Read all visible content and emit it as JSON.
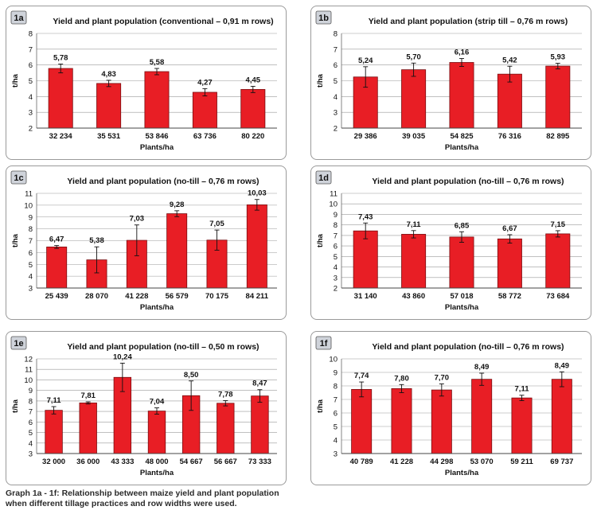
{
  "colors": {
    "bar": "#e81e25",
    "bar_edge": "#7a0d10",
    "grid": "#9a9a9a",
    "label_box": "#cfd3da"
  },
  "chart_data": [
    {
      "id": "1a",
      "type": "bar",
      "title": "Yield and plant population (conventional – 0,91 m rows)",
      "xlabel": "Plants/ha",
      "ylabel": "t/ha",
      "categories": [
        "32 234",
        "35 531",
        "53 846",
        "63 736",
        "80 220"
      ],
      "values": [
        5.78,
        4.83,
        5.58,
        4.27,
        4.45
      ],
      "value_labels": [
        "5,78",
        "4,83",
        "5,58",
        "4,27",
        "4,45"
      ],
      "errors": [
        0.28,
        0.2,
        0.2,
        0.23,
        0.2
      ],
      "ylim": [
        2,
        8
      ],
      "yticks": [
        "2",
        "3",
        "4",
        "5",
        "6",
        "7",
        "8"
      ],
      "grid": true,
      "legend": "none"
    },
    {
      "id": "1b",
      "type": "bar",
      "title": "Yield and plant population (strip till – 0,76 m rows)",
      "xlabel": "Plants/ha",
      "ylabel": "t/ha",
      "categories": [
        "29 386",
        "39 035",
        "54 825",
        "76 316",
        "82 895"
      ],
      "values": [
        5.24,
        5.7,
        6.16,
        5.42,
        5.93
      ],
      "value_labels": [
        "5,24",
        "5,70",
        "6,16",
        "5,42",
        "5,93"
      ],
      "errors": [
        0.65,
        0.42,
        0.25,
        0.5,
        0.18
      ],
      "ylim": [
        2,
        8
      ],
      "yticks": [
        "2",
        "3",
        "4",
        "5",
        "6",
        "7",
        "8"
      ],
      "grid": true,
      "legend": "none"
    },
    {
      "id": "1c",
      "type": "bar",
      "title": "Yield and plant population (no-till – 0,76 m rows)",
      "xlabel": "Plants/ha",
      "ylabel": "t/ha",
      "categories": [
        "25 439",
        "28 070",
        "41 228",
        "56 579",
        "70 175",
        "84 211"
      ],
      "values": [
        6.47,
        5.38,
        7.03,
        9.28,
        7.05,
        10.03
      ],
      "value_labels": [
        "6,47",
        "5,38",
        "7,03",
        "9,28",
        "7,05",
        "10,03"
      ],
      "errors": [
        0.12,
        1.1,
        1.3,
        0.25,
        0.85,
        0.45
      ],
      "ylim": [
        3,
        11
      ],
      "yticks": [
        "3",
        "4",
        "5",
        "6",
        "7",
        "8",
        "9",
        "10",
        "11"
      ],
      "grid": true,
      "legend": "none"
    },
    {
      "id": "1d",
      "type": "bar",
      "title": "Yield and plant population (no-till – 0,76 m rows)",
      "xlabel": "Plants/ha",
      "ylabel": "t/ha",
      "categories": [
        "31 140",
        "43 860",
        "57 018",
        "58 772",
        "73 684"
      ],
      "values": [
        7.43,
        7.11,
        6.85,
        6.67,
        7.15
      ],
      "value_labels": [
        "7,43",
        "7,11",
        "6,85",
        "6,67",
        "7,15"
      ],
      "errors": [
        0.75,
        0.35,
        0.5,
        0.4,
        0.3
      ],
      "ylim": [
        2,
        11
      ],
      "yticks": [
        "2",
        "3",
        "4",
        "5",
        "6",
        "7",
        "8",
        "9",
        "10",
        "11"
      ],
      "grid": true,
      "legend": "none"
    },
    {
      "id": "1e",
      "type": "bar",
      "title": "Yield and plant population (no-till – 0,50 m rows)",
      "xlabel": "Plants/ha",
      "ylabel": "t/ha",
      "categories": [
        "32 000",
        "36 000",
        "43 333",
        "48 000",
        "54 667",
        "56 667",
        "73 333"
      ],
      "values": [
        7.11,
        7.81,
        10.24,
        7.04,
        8.5,
        7.78,
        8.47
      ],
      "value_labels": [
        "7,11",
        "7,81",
        "10,24",
        "7,04",
        "8,50",
        "7,78",
        "8,47"
      ],
      "errors": [
        0.35,
        0.1,
        1.35,
        0.3,
        1.4,
        0.25,
        0.6
      ],
      "ylim": [
        3,
        12
      ],
      "yticks": [
        "3",
        "4",
        "5",
        "6",
        "7",
        "8",
        "9",
        "10",
        "11",
        "12"
      ],
      "grid": true,
      "legend": "none"
    },
    {
      "id": "1f",
      "type": "bar",
      "title": "Yield and plant population (no-till – 0,76 m rows)",
      "xlabel": "Plants/ha",
      "ylabel": "t/ha",
      "categories": [
        "40 789",
        "41 228",
        "44 298",
        "53 070",
        "59 211",
        "69 737"
      ],
      "values": [
        7.74,
        7.8,
        7.7,
        8.49,
        7.11,
        8.49
      ],
      "value_labels": [
        "7,74",
        "7,80",
        "7,70",
        "8,49",
        "7,11",
        "8,49"
      ],
      "errors": [
        0.55,
        0.3,
        0.45,
        0.45,
        0.2,
        0.55
      ],
      "ylim": [
        3,
        10
      ],
      "yticks": [
        "3",
        "4",
        "5",
        "6",
        "7",
        "8",
        "9",
        "10"
      ],
      "grid": true,
      "legend": "none"
    }
  ],
  "caption": {
    "line1": "Graph 1a - 1f: Relationship between maize yield and plant population",
    "line2": "when different tillage practices and row widths were used."
  }
}
